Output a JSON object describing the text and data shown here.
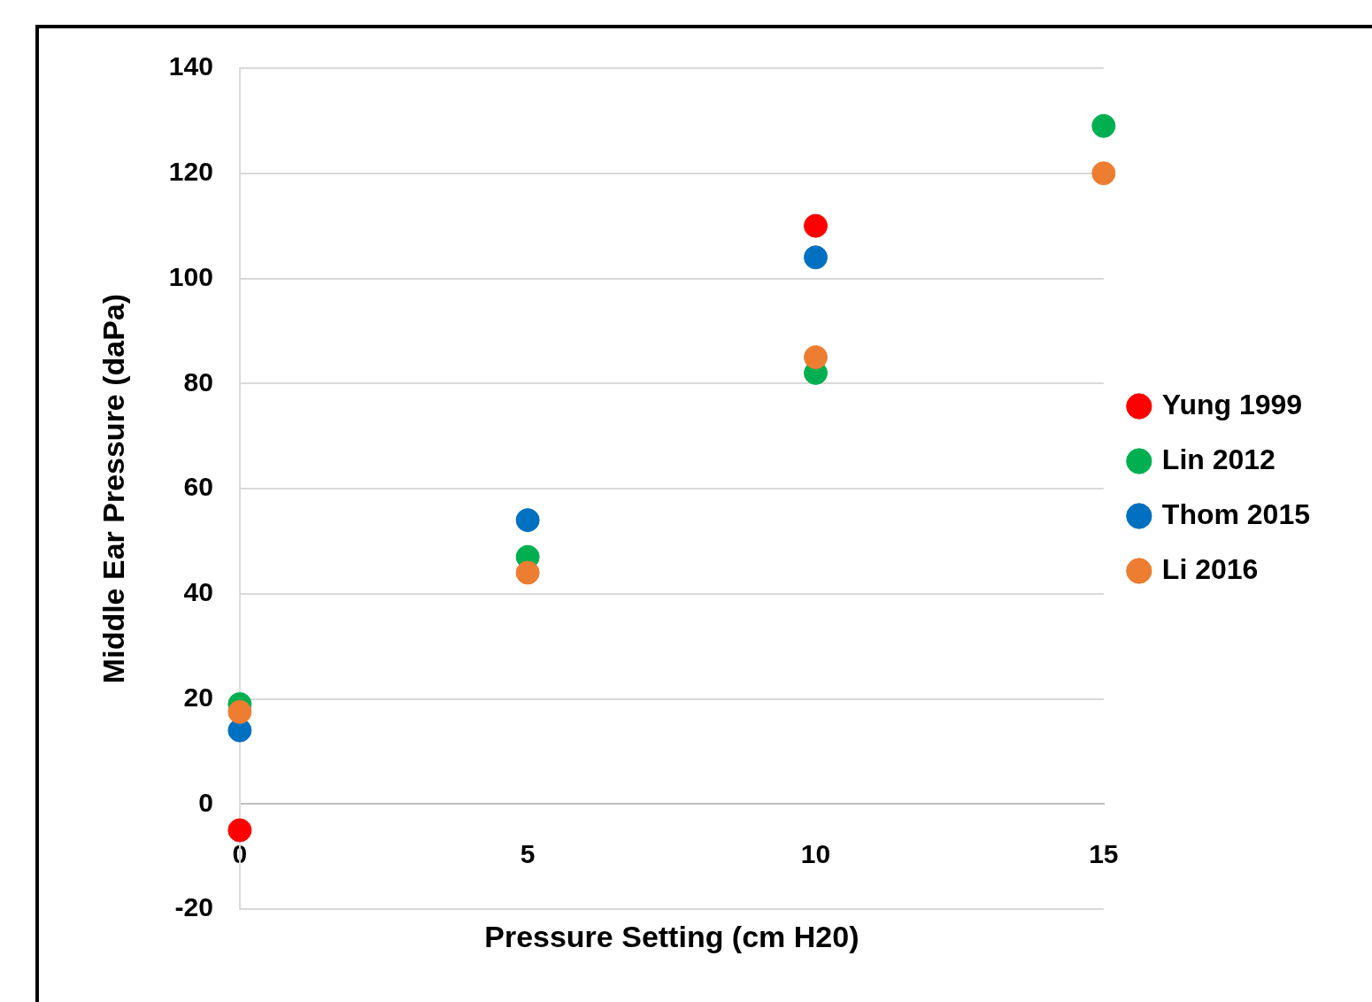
{
  "chart_data": {
    "type": "scatter",
    "xlabel": "Pressure Setting (cm H20)",
    "ylabel": "Middle Ear Pressure (daPa)",
    "xlim": [
      0,
      15
    ],
    "xticks": [
      0,
      5,
      10,
      15
    ],
    "ylim": [
      -20,
      140
    ],
    "yticks": [
      -20,
      0,
      20,
      40,
      60,
      80,
      100,
      120,
      140
    ],
    "grid": "y",
    "legend": "right",
    "marker": "circle",
    "series": [
      {
        "name": "Yung 1999",
        "color": "#ff0000",
        "x": [
          0,
          10
        ],
        "values": [
          -5,
          110
        ]
      },
      {
        "name": "Lin 2012",
        "color": "#00b050",
        "x": [
          0,
          5,
          10,
          15
        ],
        "values": [
          19,
          47,
          82,
          129
        ]
      },
      {
        "name": "Thom 2015",
        "color": "#0070c0",
        "x": [
          0,
          5,
          10
        ],
        "values": [
          14,
          54,
          104
        ]
      },
      {
        "name": "Li 2016",
        "color": "#ed7d31",
        "x": [
          0,
          5,
          10,
          15
        ],
        "values": [
          17.5,
          44,
          85,
          120
        ]
      }
    ]
  }
}
